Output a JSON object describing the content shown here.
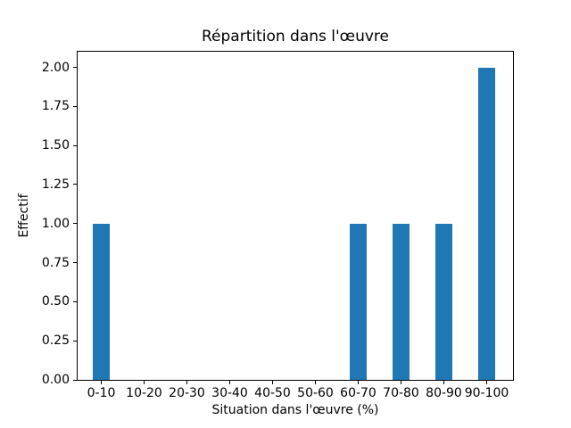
{
  "chart_data": {
    "type": "bar",
    "title": "Répartition dans l'œuvre",
    "xlabel": "Situation dans l'œuvre (%)",
    "ylabel": "Effectif",
    "categories": [
      "0-10",
      "10-20",
      "20-30",
      "30-40",
      "40-50",
      "50-60",
      "60-70",
      "70-80",
      "80-90",
      "90-100"
    ],
    "values": [
      1,
      0,
      0,
      0,
      0,
      0,
      1,
      1,
      1,
      2
    ],
    "ylim": [
      0,
      2.1
    ],
    "y_tick_labels": [
      "0.00",
      "0.25",
      "0.50",
      "0.75",
      "1.00",
      "1.25",
      "1.50",
      "1.75",
      "2.00"
    ],
    "bar_color": "#1f77b4",
    "background_color": "#ffffff",
    "grid": false
  }
}
